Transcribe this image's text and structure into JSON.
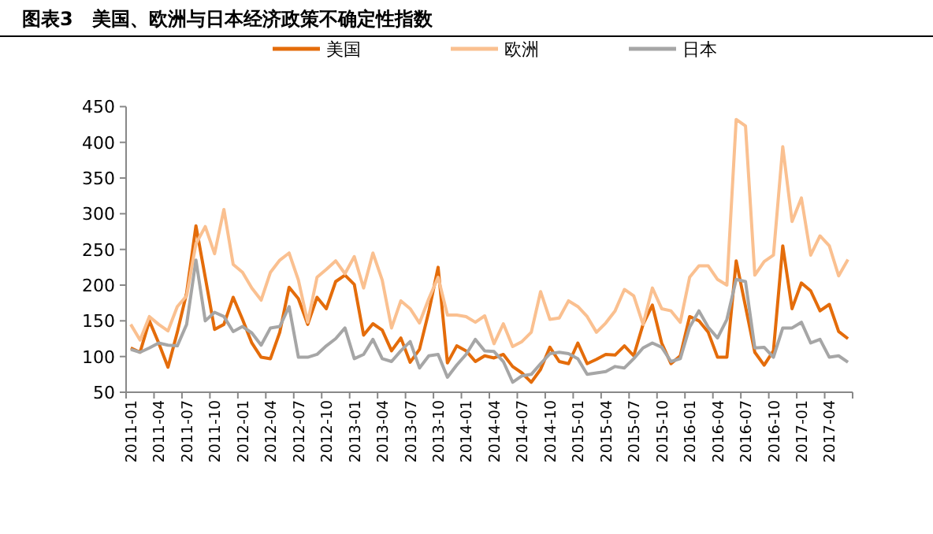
{
  "chart_data": {
    "type": "line",
    "title": "图表3　美国、欧洲与日本经济政策不确定性指数",
    "categories": [
      "2011-01",
      null,
      null,
      "2011-04",
      null,
      null,
      "2011-07",
      null,
      null,
      "2011-10",
      null,
      null,
      "2012-01",
      null,
      null,
      "2012-04",
      null,
      null,
      "2012-07",
      null,
      null,
      "2012-10",
      null,
      null,
      "2013-01",
      null,
      null,
      "2013-04",
      null,
      null,
      "2013-07",
      null,
      null,
      "2013-10",
      null,
      null,
      "2014-01",
      null,
      null,
      "2014-04",
      null,
      null,
      "2014-07",
      null,
      null,
      "2014-10",
      null,
      null,
      "2015-01",
      null,
      null,
      "2015-04",
      null,
      null,
      "2015-07",
      null,
      null,
      "2015-10",
      null,
      null,
      "2016-01",
      null,
      null,
      "2016-04",
      null,
      null,
      "2016-07",
      null,
      null,
      "2016-10",
      null,
      null,
      "2017-01",
      null,
      null,
      "2017-04",
      null,
      null
    ],
    "series": [
      {
        "name": "美国",
        "color": "#e46c0a",
        "values": [
          112,
          106,
          150,
          119,
          85,
          134,
          189,
          283,
          211,
          138,
          145,
          183,
          152,
          119,
          99,
          97,
          134,
          197,
          181,
          145,
          183,
          167,
          205,
          214,
          201,
          130,
          146,
          137,
          108,
          126,
          92,
          110,
          163,
          225,
          91,
          115,
          108,
          93,
          101,
          98,
          103,
          86,
          77,
          64,
          82,
          113,
          93,
          90,
          119,
          90,
          96,
          103,
          102,
          115,
          101,
          145,
          172,
          119,
          90,
          101,
          156,
          150,
          134,
          99,
          99,
          234,
          170,
          106,
          88,
          108,
          255,
          167,
          203,
          192,
          164,
          173,
          135,
          125
        ]
      },
      {
        "name": "欧洲",
        "color": "#fac090",
        "values": [
          145,
          123,
          156,
          145,
          136,
          170,
          185,
          258,
          282,
          244,
          306,
          229,
          218,
          196,
          179,
          218,
          235,
          245,
          207,
          148,
          211,
          222,
          234,
          216,
          240,
          196,
          245,
          207,
          140,
          178,
          167,
          147,
          181,
          211,
          158,
          158,
          156,
          148,
          157,
          118,
          146,
          114,
          121,
          134,
          191,
          152,
          154,
          178,
          170,
          156,
          134,
          147,
          164,
          194,
          185,
          145,
          196,
          167,
          164,
          148,
          211,
          227,
          227,
          208,
          200,
          432,
          423,
          214,
          233,
          242,
          394,
          289,
          322,
          242,
          269,
          255,
          213,
          236
        ]
      },
      {
        "name": "日本",
        "color": "#a6a6a6",
        "values": [
          110,
          106,
          112,
          119,
          116,
          115,
          145,
          235,
          150,
          162,
          156,
          135,
          142,
          133,
          116,
          140,
          142,
          170,
          99,
          99,
          103,
          115,
          125,
          140,
          97,
          103,
          124,
          97,
          93,
          108,
          121,
          84,
          101,
          103,
          71,
          88,
          103,
          124,
          108,
          107,
          93,
          64,
          73,
          75,
          90,
          104,
          106,
          104,
          97,
          75,
          77,
          79,
          86,
          84,
          97,
          112,
          119,
          113,
          93,
          97,
          141,
          164,
          141,
          126,
          152,
          208,
          205,
          112,
          113,
          99,
          140,
          140,
          148,
          119,
          124,
          99,
          101,
          92
        ]
      }
    ],
    "ylim": [
      50,
      450
    ],
    "yticks": [
      50,
      100,
      150,
      200,
      250,
      300,
      350,
      400,
      450
    ],
    "legend": "top"
  }
}
